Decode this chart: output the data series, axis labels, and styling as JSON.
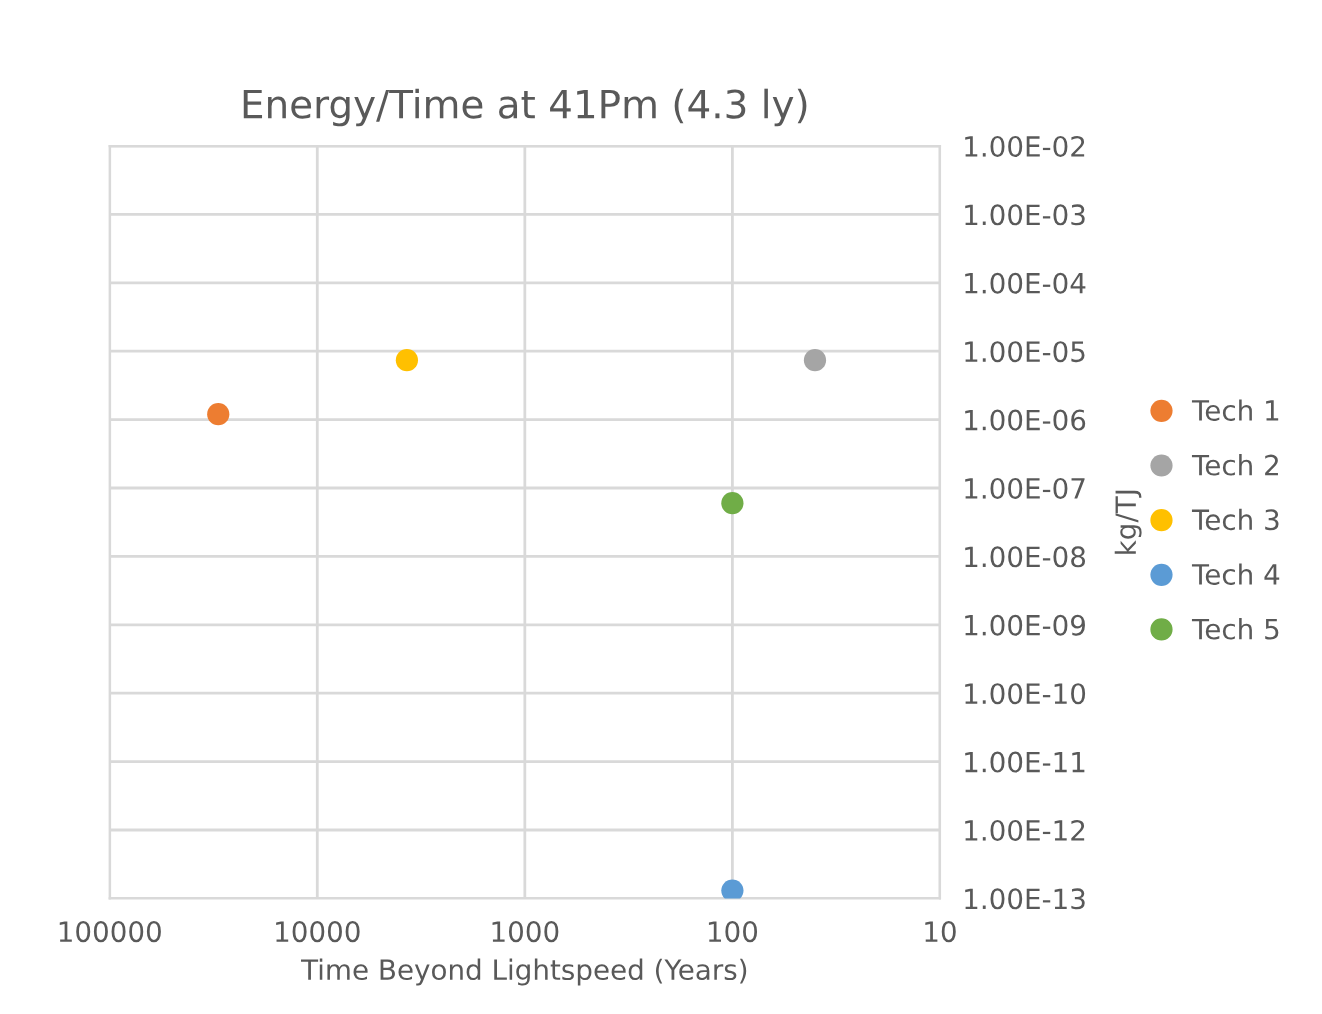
{
  "chart_data": {
    "type": "scatter",
    "title": "Energy/Time at 41Pm (4.3 ly)",
    "xlabel": "Time Beyond Lightspeed (Years)",
    "ylabel": "kg/TJ",
    "series": [
      {
        "name": "Tech 1",
        "color": "#ed7d31",
        "x": [
          30000
        ],
        "values": [
          1.2e-06
        ]
      },
      {
        "name": "Tech 2",
        "color": "#a5a5a5",
        "x": [
          40
        ],
        "values": [
          7.4e-06
        ]
      },
      {
        "name": "Tech 3",
        "color": "#ffc000",
        "x": [
          3700
        ],
        "values": [
          7.4e-06
        ]
      },
      {
        "name": "Tech 4",
        "color": "#5b9bd5",
        "x": [
          100
        ],
        "values": [
          1.3e-13
        ]
      },
      {
        "name": "Tech 5",
        "color": "#70ad47",
        "x": [
          100
        ],
        "values": [
          6e-08
        ]
      }
    ],
    "log": "xy",
    "xlim": [
      100000,
      10
    ],
    "xticks": [
      100000,
      10000,
      1000,
      100,
      10
    ],
    "ylim": [
      1e-13,
      0.01
    ],
    "yticks": [
      {
        "value": 1e-13,
        "label": "1.00E-13"
      },
      {
        "value": 1e-12,
        "label": "1.00E-12"
      },
      {
        "value": 1e-11,
        "label": "1.00E-11"
      },
      {
        "value": 1e-10,
        "label": "1.00E-10"
      },
      {
        "value": 1e-09,
        "label": "1.00E-09"
      },
      {
        "value": 1e-08,
        "label": "1.00E-08"
      },
      {
        "value": 1e-07,
        "label": "1.00E-07"
      },
      {
        "value": 1e-06,
        "label": "1.00E-06"
      },
      {
        "value": 1e-05,
        "label": "1.00E-05"
      },
      {
        "value": 0.0001,
        "label": "1.00E-04"
      },
      {
        "value": 0.001,
        "label": "1.00E-03"
      },
      {
        "value": 0.01,
        "label": "1.00E-02"
      }
    ],
    "grid": true,
    "legend": "right",
    "marker": "circle"
  }
}
